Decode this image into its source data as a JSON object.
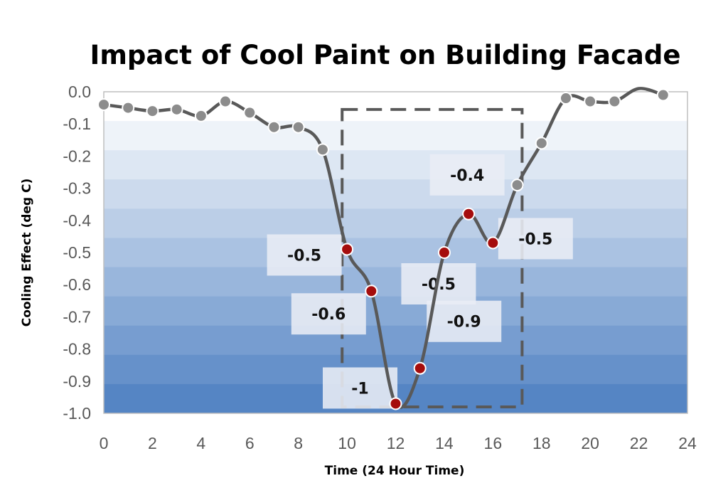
{
  "chart_data": {
    "type": "line",
    "title": "Impact of Cool Paint on Building Facade",
    "xlabel": "Time (24 Hour Time)",
    "ylabel": "Cooling Effect (deg C)",
    "xlim": [
      0,
      24
    ],
    "ylim": [
      -1.0,
      0.0
    ],
    "x_ticks": [
      "0",
      "2",
      "4",
      "6",
      "8",
      "10",
      "12",
      "14",
      "16",
      "18",
      "20",
      "22",
      "24"
    ],
    "y_ticks": [
      "0.0",
      "-0.1",
      "-0.2",
      "-0.3",
      "-0.4",
      "-0.5",
      "-0.6",
      "-0.7",
      "-0.8",
      "-0.9",
      "-1.0"
    ],
    "series": [
      {
        "name": "Cooling Effect",
        "x": [
          0,
          1,
          2,
          3,
          4,
          5,
          6,
          7,
          8,
          9,
          10,
          11,
          12,
          13,
          14,
          15,
          16,
          17,
          18,
          19,
          20,
          21,
          22,
          23
        ],
        "values": [
          -0.04,
          -0.05,
          -0.06,
          -0.055,
          -0.075,
          -0.03,
          -0.065,
          -0.11,
          -0.11,
          -0.18,
          -0.49,
          -0.62,
          -0.97,
          -0.86,
          -0.5,
          -0.38,
          -0.47,
          -0.29,
          -0.16,
          -0.02,
          -0.03,
          -0.03,
          0.01,
          -0.01
        ],
        "highlighted_hours": [
          10,
          11,
          12,
          13,
          14,
          15,
          16
        ]
      }
    ],
    "data_labels": [
      {
        "x": 10,
        "text": "-0.5"
      },
      {
        "x": 11,
        "text": "-0.6"
      },
      {
        "x": 12,
        "text": "-1"
      },
      {
        "x": 13,
        "text": "-0.9"
      },
      {
        "x": 14,
        "text": "-0.5"
      },
      {
        "x": 15,
        "text": "-0.4"
      },
      {
        "x": 16,
        "text": "-0.5"
      }
    ],
    "highlight_box": {
      "x_range": [
        9.8,
        17.2
      ],
      "y_range": [
        -0.98,
        -0.055
      ],
      "style": "dashed"
    },
    "colors": {
      "line": "#595959",
      "marker_normal": "#8c8c8c",
      "marker_highlight": "#a50d0d",
      "marker_edge": "#ffffff",
      "box": "#595959",
      "gradient_top": "#ffffff",
      "gradient_bottom": "#5585c4",
      "label_bg": "#e9edf5",
      "axis": "#bfbfbf"
    }
  }
}
